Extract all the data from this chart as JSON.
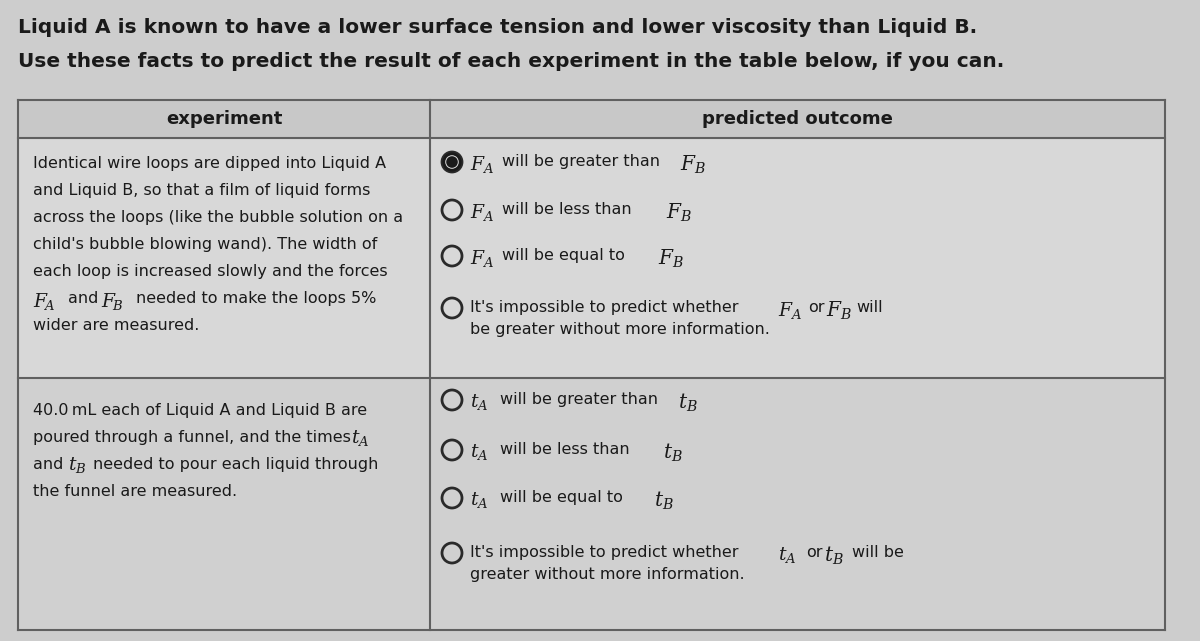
{
  "title1": "Liquid A is known to have a lower surface tension and lower viscosity than Liquid B.",
  "title2": "Use these facts to predict the result of each experiment in the table below, if you can.",
  "col1_header": "experiment",
  "col2_header": "predicted outcome",
  "bg_color": "#cdcdcd",
  "table_bg": "#d2d2d2",
  "row1_left_lines": [
    "Identical wire loops are dipped into Liquid A",
    "and Liquid B, so that a film of liquid forms",
    "across the loops (like the bubble solution on a",
    "child's bubble blowing wand). The width of",
    "each loop is increased slowly and the forces"
  ],
  "row1_left_end": "wider are measured.",
  "row2_left_lines": [
    "40.0 mL each of Liquid A and Liquid B are",
    "poured through a funnel, and the times",
    "and",
    "needed to pour each liquid through",
    "the funnel are measured."
  ],
  "font_size_title": 14.5,
  "font_size_header": 13,
  "font_size_body": 11.5,
  "text_color": "#1a1a1a",
  "line_color": "#606060"
}
